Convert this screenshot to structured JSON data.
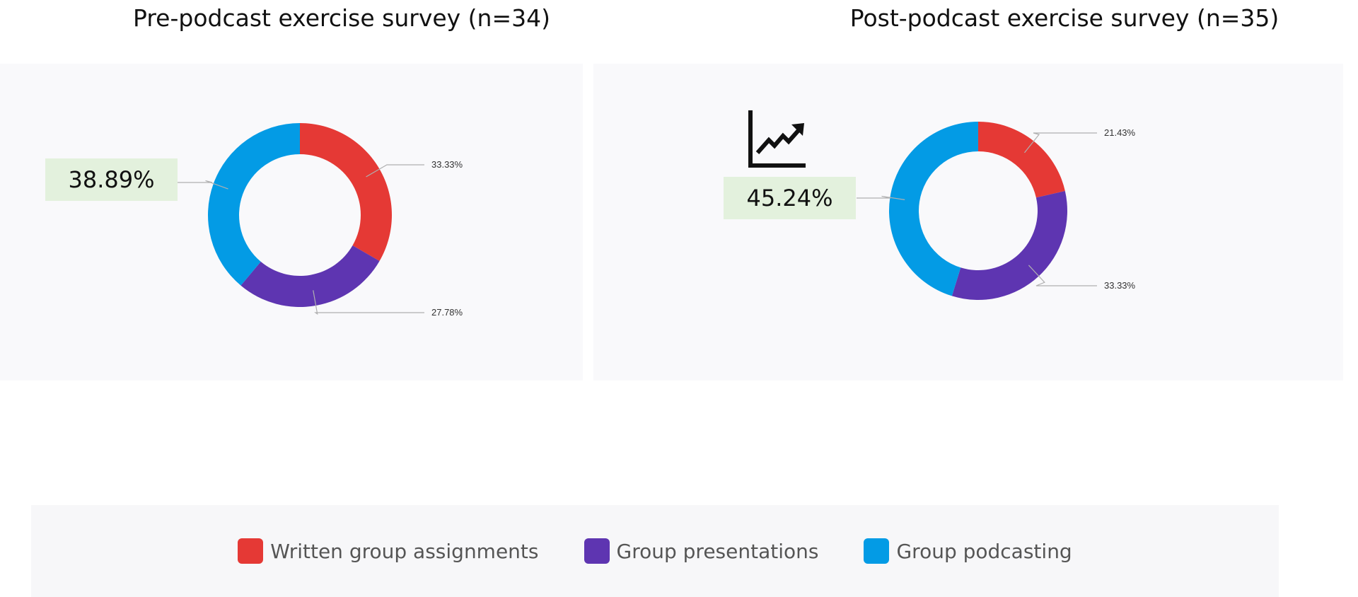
{
  "chart_data": [
    {
      "type": "pie",
      "title": "Pre-podcast exercise survey (n=34)",
      "categories": [
        "Written group assignments",
        "Group presentations",
        "Group podcasting"
      ],
      "values": [
        33.33,
        27.78,
        38.89
      ],
      "value_labels": [
        "33.33%",
        "27.78%",
        "38.89%"
      ],
      "colors": [
        "#e53935",
        "#5e35b1",
        "#039be5"
      ],
      "donut": true,
      "highlight": "38.89%"
    },
    {
      "type": "pie",
      "title": "Post-podcast exercise survey (n=35)",
      "categories": [
        "Written group assignments",
        "Group presentations",
        "Group podcasting"
      ],
      "values": [
        21.43,
        33.33,
        45.24
      ],
      "value_labels": [
        "21.43%",
        "33.33%",
        "45.24%"
      ],
      "colors": [
        "#e53935",
        "#5e35b1",
        "#039be5"
      ],
      "donut": true,
      "highlight": "45.24%",
      "icon": "trending-up-icon"
    }
  ],
  "legend": {
    "placement": "bottom",
    "items": [
      {
        "label": "Written group assignments",
        "color": "#e53935"
      },
      {
        "label": "Group presentations",
        "color": "#5e35b1"
      },
      {
        "label": "Group podcasting",
        "color": "#039be5"
      }
    ]
  }
}
